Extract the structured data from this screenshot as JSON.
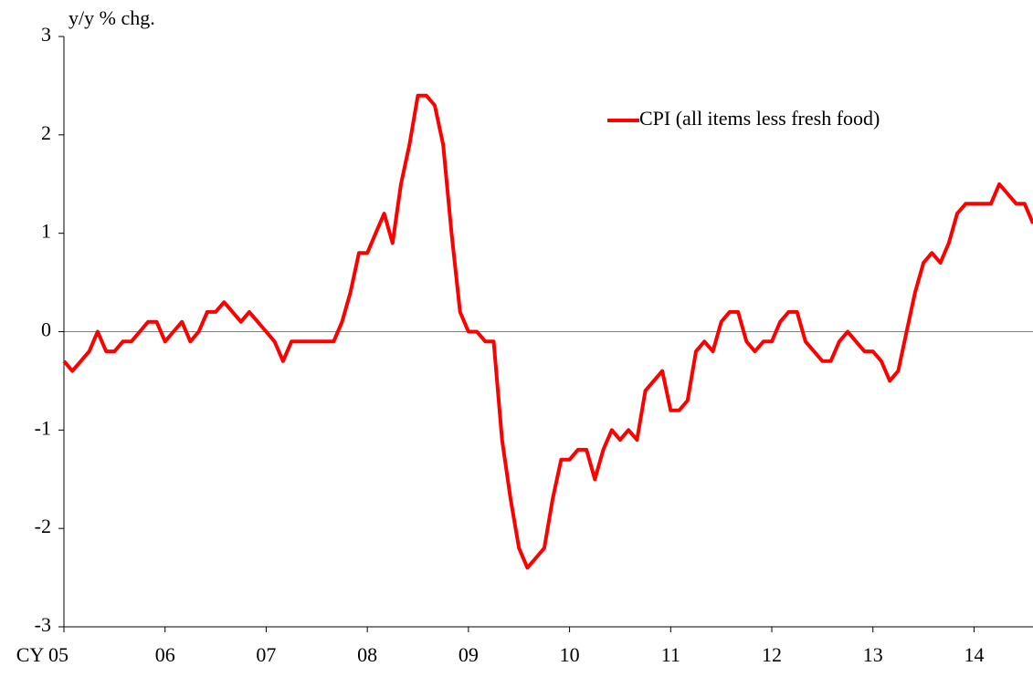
{
  "chart_data": {
    "type": "line",
    "y_axis_label": "y/y % chg.",
    "x": [
      2005,
      2005.083,
      2005.167,
      2005.25,
      2005.333,
      2005.417,
      2005.5,
      2005.583,
      2005.667,
      2005.75,
      2005.833,
      2005.917,
      2006,
      2006.083,
      2006.167,
      2006.25,
      2006.333,
      2006.417,
      2006.5,
      2006.583,
      2006.667,
      2006.75,
      2006.833,
      2006.917,
      2007,
      2007.083,
      2007.167,
      2007.25,
      2007.333,
      2007.417,
      2007.5,
      2007.583,
      2007.667,
      2007.75,
      2007.833,
      2007.917,
      2008,
      2008.083,
      2008.167,
      2008.25,
      2008.333,
      2008.417,
      2008.5,
      2008.583,
      2008.667,
      2008.75,
      2008.833,
      2008.917,
      2009,
      2009.083,
      2009.167,
      2009.25,
      2009.333,
      2009.417,
      2009.5,
      2009.583,
      2009.667,
      2009.75,
      2009.833,
      2009.917,
      2010,
      2010.083,
      2010.167,
      2010.25,
      2010.333,
      2010.417,
      2010.5,
      2010.583,
      2010.667,
      2010.75,
      2010.833,
      2010.917,
      2011,
      2011.083,
      2011.167,
      2011.25,
      2011.333,
      2011.417,
      2011.5,
      2011.583,
      2011.667,
      2011.75,
      2011.833,
      2011.917,
      2012,
      2012.083,
      2012.167,
      2012.25,
      2012.333,
      2012.417,
      2012.5,
      2012.583,
      2012.667,
      2012.75,
      2012.833,
      2012.917,
      2013,
      2013.083,
      2013.167,
      2013.25,
      2013.333,
      2013.417,
      2013.5,
      2013.583,
      2013.667,
      2013.75,
      2013.833,
      2013.917,
      2014,
      2014.083,
      2014.167,
      2014.25,
      2014.333,
      2014.417,
      2014.5,
      2014.583
    ],
    "series": [
      {
        "name": "CPI (all items less fresh food)",
        "color": "#ff0000",
        "values": [
          -0.3,
          -0.4,
          -0.3,
          -0.2,
          0.0,
          -0.2,
          -0.2,
          -0.1,
          -0.1,
          0.0,
          0.1,
          0.1,
          -0.1,
          0.0,
          0.1,
          -0.1,
          0.0,
          0.2,
          0.2,
          0.3,
          0.2,
          0.1,
          0.2,
          0.1,
          0.0,
          -0.1,
          -0.3,
          -0.1,
          -0.1,
          -0.1,
          -0.1,
          -0.1,
          -0.1,
          0.1,
          0.4,
          0.8,
          0.8,
          1.0,
          1.2,
          0.9,
          1.5,
          1.9,
          2.4,
          2.4,
          2.3,
          1.9,
          1.0,
          0.2,
          0.0,
          0.0,
          -0.1,
          -0.1,
          -1.1,
          -1.7,
          -2.2,
          -2.4,
          -2.3,
          -2.2,
          -1.7,
          -1.3,
          -1.3,
          -1.2,
          -1.2,
          -1.5,
          -1.2,
          -1.0,
          -1.1,
          -1.0,
          -1.1,
          -0.6,
          -0.5,
          -0.4,
          -0.8,
          -0.8,
          -0.7,
          -0.2,
          -0.1,
          -0.2,
          0.1,
          0.2,
          0.2,
          -0.1,
          -0.2,
          -0.1,
          -0.1,
          0.1,
          0.2,
          0.2,
          -0.1,
          -0.2,
          -0.3,
          -0.3,
          -0.1,
          0.0,
          -0.1,
          -0.2,
          -0.2,
          -0.3,
          -0.5,
          -0.4,
          0.0,
          0.4,
          0.7,
          0.8,
          0.7,
          0.9,
          1.2,
          1.3,
          1.3,
          1.3,
          1.3,
          1.5,
          1.4,
          1.3,
          1.3,
          1.1
        ]
      }
    ],
    "xlim": [
      2005,
      2014.583
    ],
    "xticks": [
      {
        "value": 2005,
        "label": "CY 05"
      },
      {
        "value": 2006,
        "label": "06"
      },
      {
        "value": 2007,
        "label": "07"
      },
      {
        "value": 2008,
        "label": "08"
      },
      {
        "value": 2009,
        "label": "09"
      },
      {
        "value": 2010,
        "label": "10"
      },
      {
        "value": 2011,
        "label": "11"
      },
      {
        "value": 2012,
        "label": "12"
      },
      {
        "value": 2013,
        "label": "13"
      },
      {
        "value": 2014,
        "label": "14"
      }
    ],
    "ylim": [
      -3,
      3
    ],
    "yticks": [
      -3,
      -2,
      -1,
      0,
      1,
      2,
      3
    ],
    "legend": "top-right"
  }
}
